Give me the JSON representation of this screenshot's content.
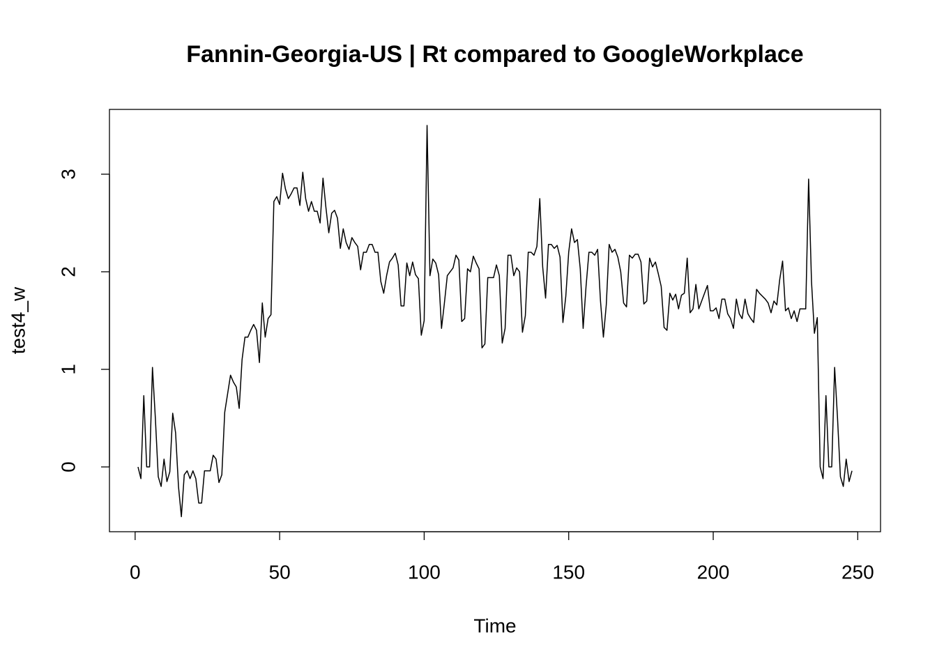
{
  "chart_data": {
    "type": "line",
    "title": "Fannin-Georgia-US | Rt compared to GoogleWorkplace",
    "xlabel": "Time",
    "ylabel": "test4_w",
    "color": "#000000",
    "xlim": [
      -8.88,
      257.88
    ],
    "ylim": [
      -0.664,
      3.664
    ],
    "xticks": [
      0,
      50,
      100,
      150,
      200,
      250
    ],
    "yticks": [
      0,
      1,
      2,
      3
    ],
    "x": [
      1,
      2,
      3,
      4,
      5,
      6,
      7,
      8,
      9,
      10,
      11,
      12,
      13,
      14,
      15,
      16,
      17,
      18,
      19,
      20,
      21,
      22,
      23,
      24,
      25,
      26,
      27,
      28,
      29,
      30,
      31,
      32,
      33,
      34,
      35,
      36,
      37,
      38,
      39,
      40,
      41,
      42,
      43,
      44,
      45,
      46,
      47,
      48,
      49,
      50,
      51,
      52,
      53,
      54,
      55,
      56,
      57,
      58,
      59,
      60,
      61,
      62,
      63,
      64,
      65,
      66,
      67,
      68,
      69,
      70,
      71,
      72,
      73,
      74,
      75,
      76,
      77,
      78,
      79,
      80,
      81,
      82,
      83,
      84,
      85,
      86,
      87,
      88,
      89,
      90,
      91,
      92,
      93,
      94,
      95,
      96,
      97,
      98,
      99,
      100,
      101,
      102,
      103,
      104,
      105,
      106,
      107,
      108,
      109,
      110,
      111,
      112,
      113,
      114,
      115,
      116,
      117,
      118,
      119,
      120,
      121,
      122,
      123,
      124,
      125,
      126,
      127,
      128,
      129,
      130,
      131,
      132,
      133,
      134,
      135,
      136,
      137,
      138,
      139,
      140,
      141,
      142,
      143,
      144,
      145,
      146,
      147,
      148,
      149,
      150,
      151,
      152,
      153,
      154,
      155,
      156,
      157,
      158,
      159,
      160,
      161,
      162,
      163,
      164,
      165,
      166,
      167,
      168,
      169,
      170,
      171,
      172,
      173,
      174,
      175,
      176,
      177,
      178,
      179,
      180,
      181,
      182,
      183,
      184,
      185,
      186,
      187,
      188,
      189,
      190,
      191,
      192,
      193,
      194,
      195,
      196,
      197,
      198,
      199,
      200,
      201,
      202,
      203,
      204,
      205,
      206,
      207,
      208,
      209,
      210,
      211,
      212,
      213,
      214,
      215,
      216,
      217,
      218,
      219,
      220,
      221,
      222,
      223,
      224,
      225,
      226,
      227,
      228,
      229,
      230,
      231,
      232,
      233,
      234,
      235,
      236,
      237,
      238,
      239,
      240,
      241,
      242,
      243,
      244,
      245,
      246,
      247,
      248
    ],
    "values": [
      0,
      -0.12,
      0.73,
      0,
      0,
      1.02,
      0.5,
      -0.1,
      -0.2,
      0.08,
      -0.15,
      -0.05,
      0.55,
      0.35,
      -0.2,
      -0.51,
      -0.08,
      -0.04,
      -0.12,
      -0.04,
      -0.12,
      -0.37,
      -0.37,
      -0.04,
      -0.04,
      -0.04,
      0.12,
      0.08,
      -0.16,
      -0.08,
      0.56,
      0.75,
      0.94,
      0.87,
      0.82,
      0.6,
      1.1,
      1.33,
      1.33,
      1.4,
      1.46,
      1.4,
      1.07,
      1.68,
      1.33,
      1.52,
      1.56,
      2.72,
      2.77,
      2.69,
      3.01,
      2.85,
      2.75,
      2.8,
      2.86,
      2.86,
      2.68,
      3.02,
      2.75,
      2.62,
      2.72,
      2.62,
      2.62,
      2.5,
      2.96,
      2.66,
      2.4,
      2.6,
      2.63,
      2.55,
      2.24,
      2.44,
      2.3,
      2.23,
      2.35,
      2.3,
      2.26,
      2.02,
      2.2,
      2.2,
      2.28,
      2.28,
      2.2,
      2.2,
      1.9,
      1.78,
      1.96,
      2.1,
      2.14,
      2.19,
      2.07,
      1.65,
      1.65,
      2.09,
      1.96,
      2.1,
      1.97,
      1.93,
      1.35,
      1.5,
      3.5,
      1.96,
      2.13,
      2.09,
      1.97,
      1.42,
      1.68,
      1.96,
      2.0,
      2.04,
      2.17,
      2.12,
      1.49,
      1.52,
      2.03,
      2.0,
      2.16,
      2.09,
      2.03,
      1.22,
      1.26,
      1.94,
      1.94,
      1.94,
      2.07,
      1.96,
      1.27,
      1.42,
      2.17,
      2.17,
      1.96,
      2.04,
      2.0,
      1.38,
      1.55,
      2.2,
      2.2,
      2.17,
      2.26,
      2.75,
      2.05,
      1.73,
      2.28,
      2.28,
      2.24,
      2.27,
      2.15,
      1.48,
      1.75,
      2.2,
      2.44,
      2.3,
      2.33,
      2.03,
      1.42,
      1.85,
      2.2,
      2.2,
      2.17,
      2.23,
      1.7,
      1.33,
      1.66,
      2.28,
      2.2,
      2.23,
      2.15,
      2.0,
      1.68,
      1.64,
      2.17,
      2.14,
      2.18,
      2.18,
      2.1,
      1.67,
      1.7,
      2.14,
      2.05,
      2.1,
      1.98,
      1.85,
      1.43,
      1.4,
      1.78,
      1.71,
      1.77,
      1.62,
      1.76,
      1.78,
      2.14,
      1.58,
      1.62,
      1.87,
      1.62,
      1.7,
      1.78,
      1.86,
      1.6,
      1.6,
      1.63,
      1.52,
      1.72,
      1.72,
      1.57,
      1.52,
      1.42,
      1.72,
      1.57,
      1.52,
      1.72,
      1.57,
      1.52,
      1.48,
      1.82,
      1.78,
      1.75,
      1.72,
      1.68,
      1.58,
      1.7,
      1.66,
      1.92,
      2.11,
      1.6,
      1.63,
      1.52,
      1.6,
      1.49,
      1.62,
      1.62,
      1.62,
      2.95,
      1.9,
      1.37,
      1.53,
      0,
      -0.12,
      0.73,
      0,
      0,
      1.02,
      0.5,
      -0.1,
      -0.2,
      0.08,
      -0.15,
      -0.04
    ]
  }
}
